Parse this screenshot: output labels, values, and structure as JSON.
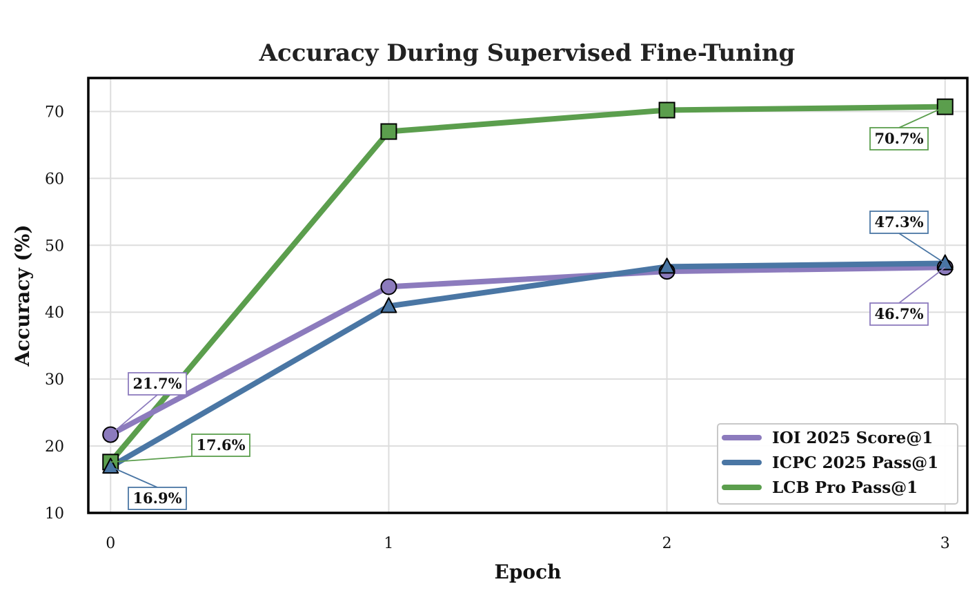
{
  "chart_data": {
    "type": "line",
    "title": "Accuracy During Supervised Fine-Tuning",
    "xlabel": "Epoch",
    "ylabel": "Accuracy (%)",
    "x": [
      0,
      1,
      2,
      3
    ],
    "xticks": [
      "0",
      "1",
      "2",
      "3"
    ],
    "yticks": [
      "10",
      "20",
      "30",
      "40",
      "50",
      "60",
      "70"
    ],
    "xlim": [
      -0.08,
      3.08
    ],
    "ylim": [
      10,
      75
    ],
    "grid": true,
    "legend_position": "bottom-right",
    "series": [
      {
        "name": "IOI 2025 Score@1",
        "values": [
          21.7,
          43.8,
          46.1,
          46.7
        ],
        "color": "#8c7bbd",
        "marker": "circle"
      },
      {
        "name": "ICPC 2025 Pass@1",
        "values": [
          16.9,
          40.9,
          46.8,
          47.3
        ],
        "color": "#4a76a4",
        "marker": "triangle"
      },
      {
        "name": "LCB Pro Pass@1",
        "values": [
          17.6,
          67.0,
          70.2,
          70.7
        ],
        "color": "#5b9e4d",
        "marker": "square"
      }
    ],
    "annotations": [
      {
        "text": "21.7%",
        "series": 0,
        "index": 0,
        "color": "#8c7bbd"
      },
      {
        "text": "17.6%",
        "series": 2,
        "index": 0,
        "color": "#5b9e4d"
      },
      {
        "text": "16.9%",
        "series": 1,
        "index": 0,
        "color": "#4a76a4"
      },
      {
        "text": "70.7%",
        "series": 2,
        "index": 3,
        "color": "#5b9e4d"
      },
      {
        "text": "47.3%",
        "series": 1,
        "index": 3,
        "color": "#4a76a4"
      },
      {
        "text": "46.7%",
        "series": 0,
        "index": 3,
        "color": "#8c7bbd"
      }
    ]
  }
}
